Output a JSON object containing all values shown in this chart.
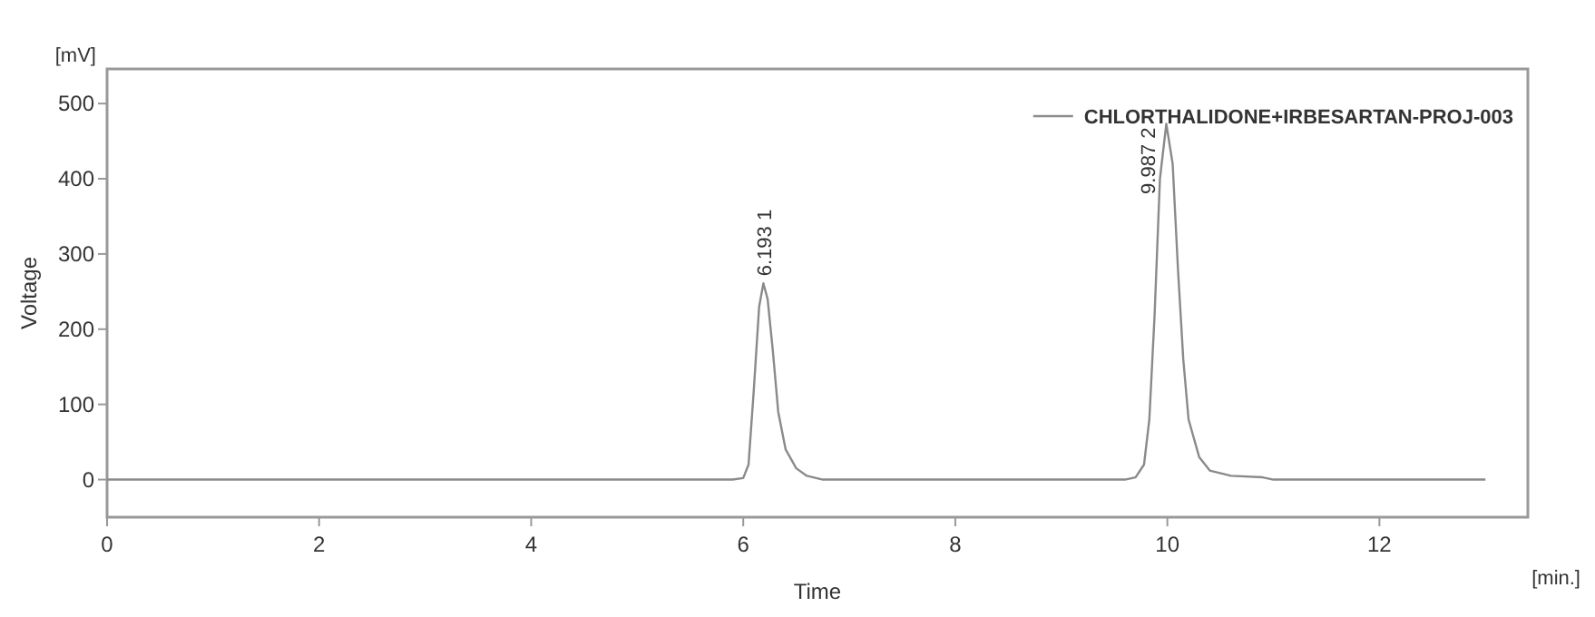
{
  "chart_data": {
    "type": "line",
    "xlabel": "Time",
    "ylabel": "Voltage",
    "xlim": [
      0,
      13.4
    ],
    "ylim": [
      -50,
      546
    ],
    "xticks": [
      0,
      2,
      4,
      6,
      8,
      10,
      12
    ],
    "yticks": [
      0,
      100,
      200,
      300,
      400,
      500
    ],
    "grid": false,
    "legend": "top right",
    "marker": "none",
    "line_style": "solid",
    "series": [
      {
        "name": "CHLORTHALIDONE+IRBESARTAN-PROJ-003",
        "color": "#8a8a8a",
        "x": [
          0,
          5.9,
          6.0,
          6.05,
          6.1,
          6.15,
          6.19,
          6.23,
          6.28,
          6.33,
          6.4,
          6.5,
          6.6,
          6.75,
          9.6,
          9.7,
          9.78,
          9.83,
          9.88,
          9.93,
          9.99,
          10.05,
          10.1,
          10.15,
          10.2,
          10.3,
          10.4,
          10.6,
          10.9,
          11.0,
          13.0
        ],
        "values": [
          0,
          0,
          2,
          20,
          120,
          230,
          261,
          240,
          170,
          90,
          40,
          15,
          5,
          0,
          0,
          3,
          20,
          80,
          220,
          400,
          473,
          420,
          280,
          160,
          80,
          30,
          12,
          5,
          3,
          0,
          0
        ]
      }
    ],
    "annotations": [
      {
        "text": "6.193 1",
        "x": 6.193,
        "y": 261
      },
      {
        "text": "9.987 2",
        "x": 9.987,
        "y": 473
      },
      "[mV]",
      "[min.]"
    ]
  }
}
